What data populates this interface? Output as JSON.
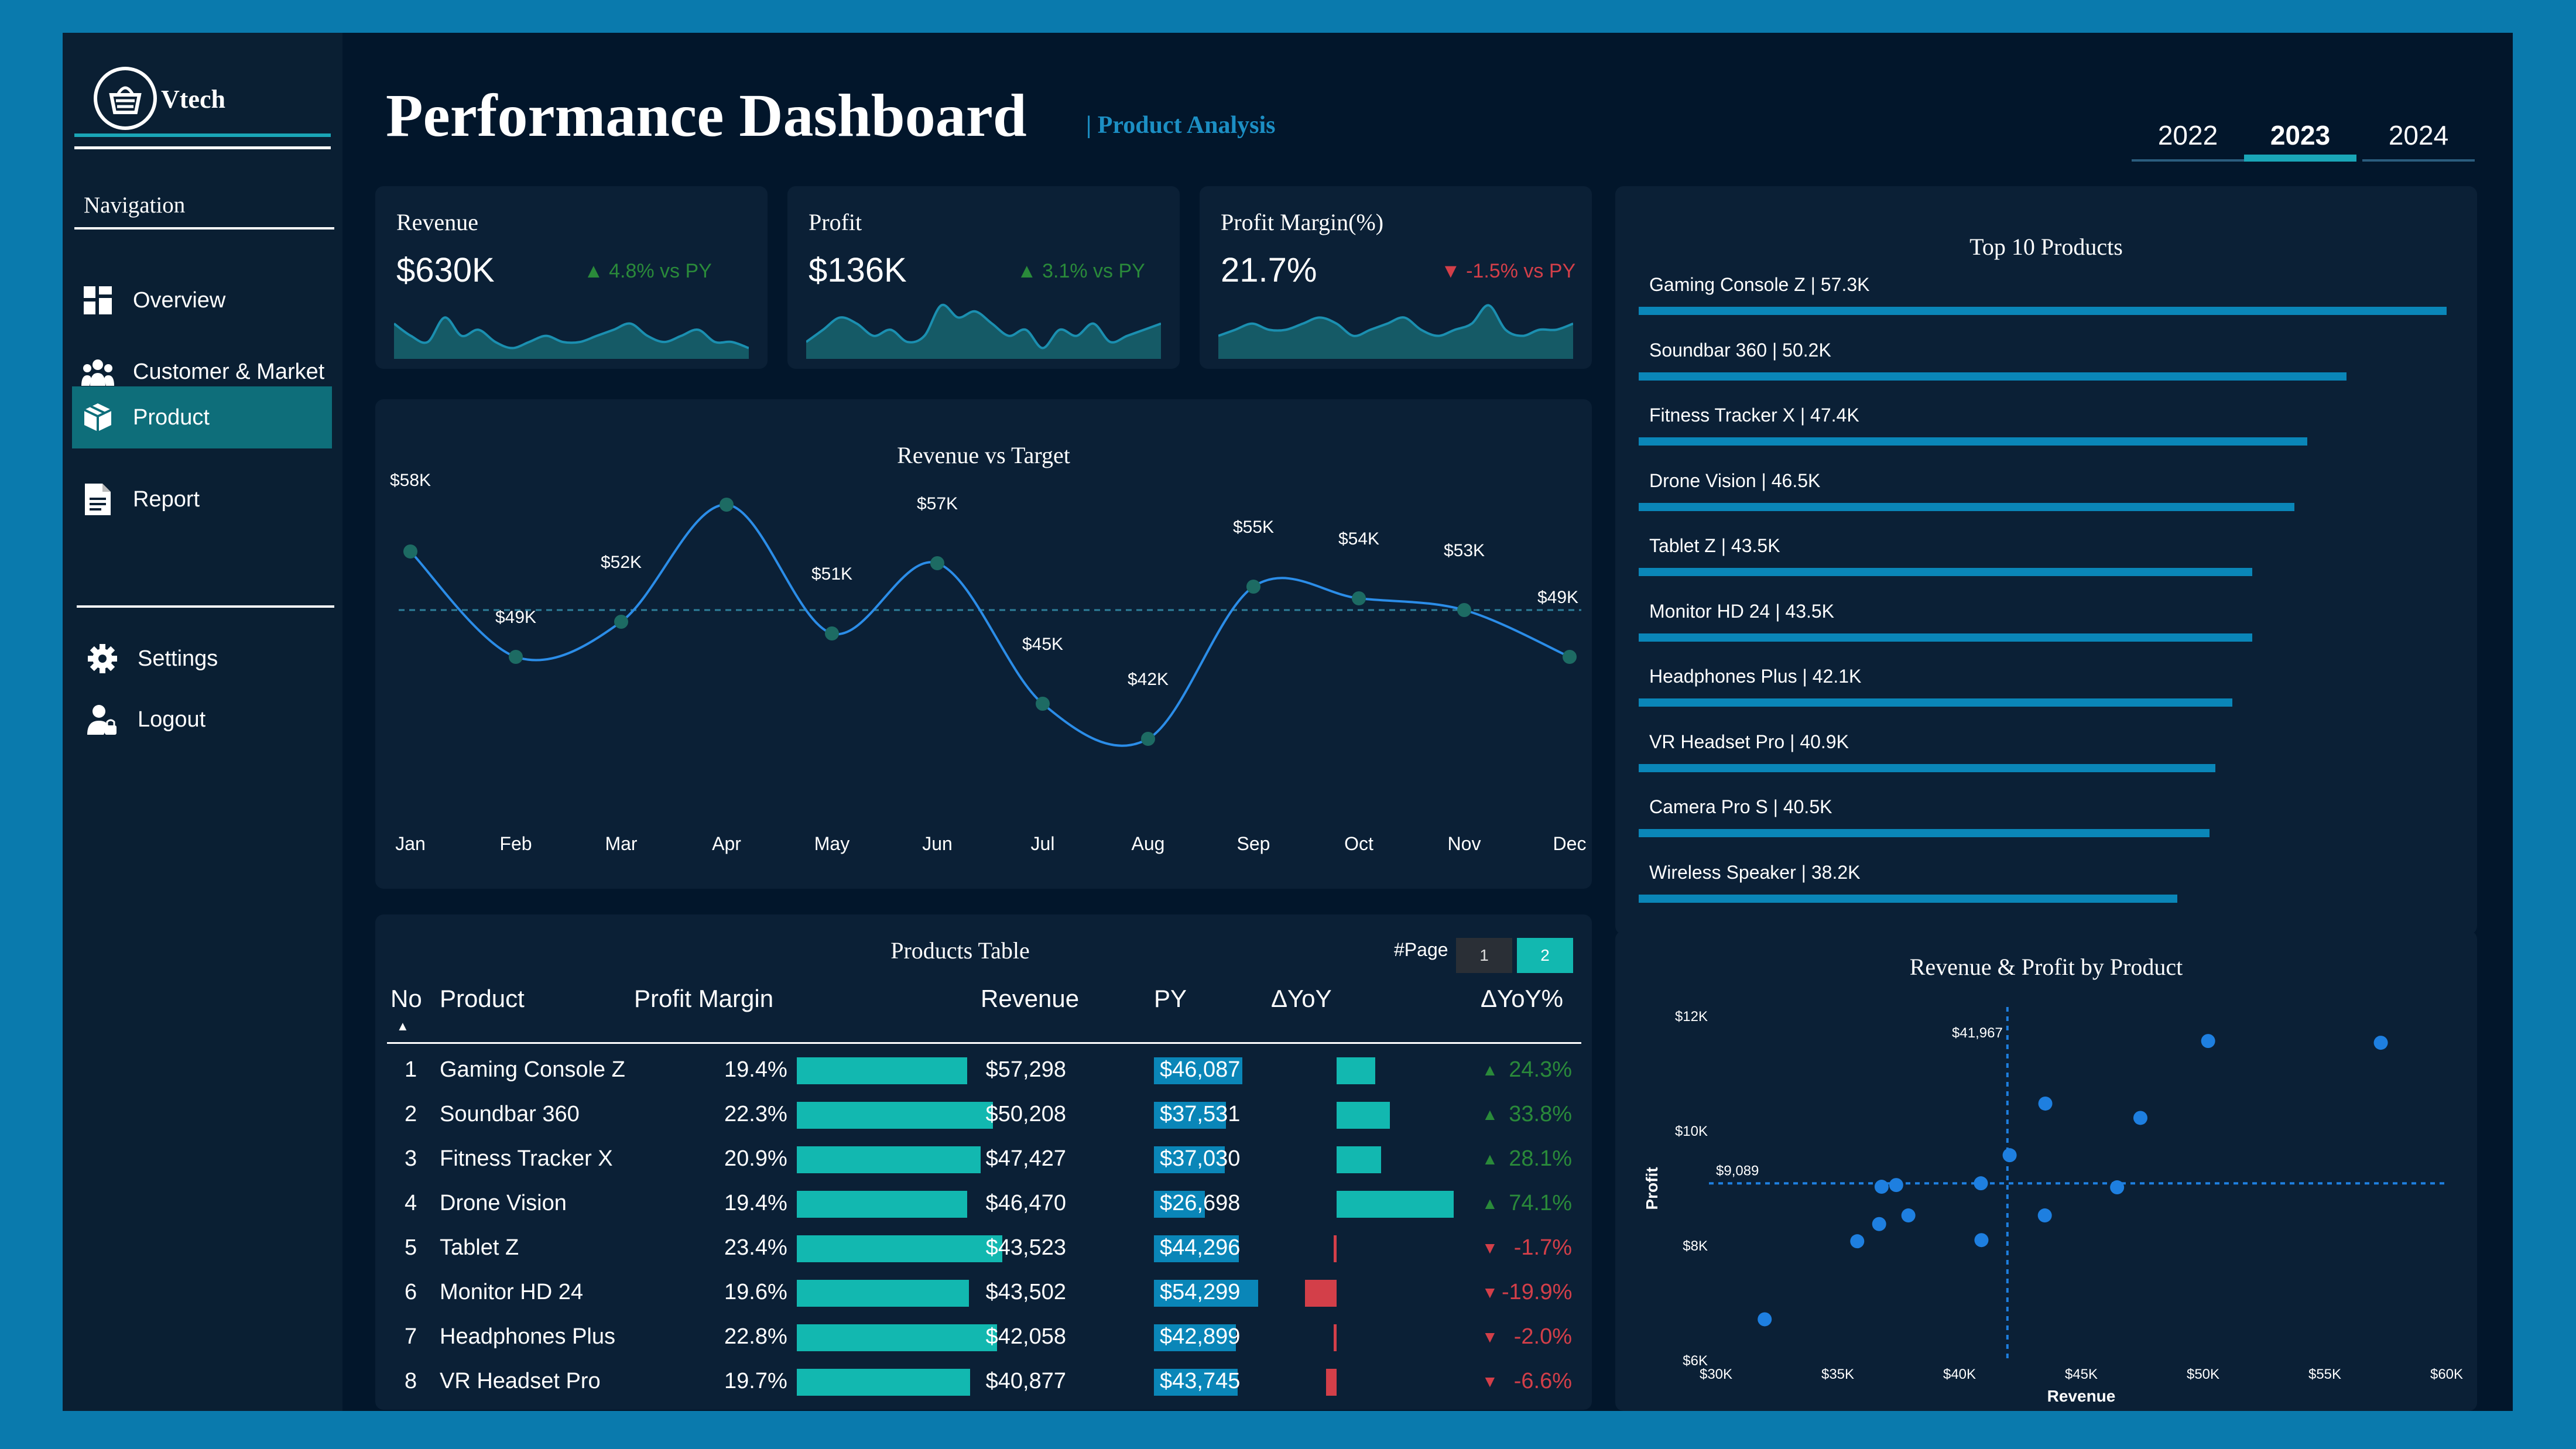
{
  "brand": {
    "name": "Vtech"
  },
  "navigation": {
    "heading": "Navigation",
    "items": [
      {
        "label": "Overview",
        "icon": "overview-grid-icon"
      },
      {
        "label": "Customer & Market",
        "icon": "customers-icon"
      },
      {
        "label": "Product",
        "icon": "product-box-icon",
        "active": true
      },
      {
        "label": "Report",
        "icon": "report-document-icon"
      }
    ],
    "bottom_items": [
      {
        "label": "Settings",
        "icon": "gear-icon"
      },
      {
        "label": "Logout",
        "icon": "logout-user-icon"
      }
    ]
  },
  "header": {
    "title": "Performance Dashboard",
    "subtitle": "| Product Analysis",
    "years": [
      "2022",
      "2023",
      "2024"
    ],
    "selected_year": "2023"
  },
  "kpis": [
    {
      "label": "Revenue",
      "value": "$630K",
      "delta": "4.8% vs PY",
      "direction": "up"
    },
    {
      "label": "Profit",
      "value": "$136K",
      "delta": "3.1% vs PY",
      "direction": "up"
    },
    {
      "label": "Profit Margin(%)",
      "value": "21.7%",
      "delta": "-1.5% vs PY",
      "direction": "down"
    }
  ],
  "colors": {
    "accent": "#1aa6b7",
    "bar": "#0a86b8",
    "positive": "#2a8a3a",
    "negative": "#d33f49",
    "line": "#2b8de8",
    "point": "#1d6b63",
    "scatter": "#1e7fe0"
  },
  "chart_data": [
    {
      "type": "line",
      "title": "Revenue vs Target",
      "categories": [
        "Jan",
        "Feb",
        "Mar",
        "Apr",
        "May",
        "Jun",
        "Jul",
        "Aug",
        "Sep",
        "Oct",
        "Nov",
        "Dec"
      ],
      "series": [
        {
          "name": "",
          "values": [
            58,
            49,
            52,
            62,
            51,
            57,
            45,
            42,
            55,
            54,
            53,
            49
          ]
        }
      ],
      "data_labels": [
        "$58K",
        "$49K",
        "$52K",
        "",
        "$51K",
        "$57K",
        "$45K",
        "$42K",
        "$55K",
        "$54K",
        "$53K",
        "$49K"
      ],
      "target": 53,
      "ylim": [
        39,
        66
      ]
    },
    {
      "type": "bar",
      "title": "Top 10 Products",
      "labels": [
        "Gaming Console Z | 57.3K",
        "Soundbar 360 | 50.2K",
        "Fitness Tracker X | 47.4K",
        "Drone Vision | 46.5K",
        "Tablet Z | 43.5K",
        "Monitor HD 24 | 43.5K",
        "Headphones Plus | 42.1K",
        "VR Headset Pro | 40.9K",
        "Camera Pro S | 40.5K",
        "Wireless Speaker | 38.2K"
      ],
      "values": [
        57.3,
        50.2,
        47.4,
        46.5,
        43.5,
        43.5,
        42.1,
        40.9,
        40.5,
        38.2
      ]
    },
    {
      "type": "scatter",
      "title": "Revenue & Profit by Product",
      "xlabel": "Revenue",
      "ylabel": "Profit",
      "xlim": [
        30000,
        60000
      ],
      "ylim": [
        6000,
        12000
      ],
      "x_ticks": [
        "$30K",
        "$35K",
        "$40K",
        "$45K",
        "$50K",
        "$55K",
        "$60K"
      ],
      "y_ticks": [
        "$6K",
        "$8K",
        "$10K",
        "$12K"
      ],
      "ref_x_label": "$41,967",
      "ref_y_label": "$9,089",
      "ref_x": 41967,
      "ref_y": 9089,
      "points": [
        {
          "x": 57298,
          "y": 11540
        },
        {
          "x": 50208,
          "y": 11570
        },
        {
          "x": 47427,
          "y": 10230
        },
        {
          "x": 43523,
          "y": 10480
        },
        {
          "x": 42058,
          "y": 9580
        },
        {
          "x": 40877,
          "y": 9090
        },
        {
          "x": 37400,
          "y": 9060
        },
        {
          "x": 36800,
          "y": 9030
        },
        {
          "x": 46470,
          "y": 9020
        },
        {
          "x": 43502,
          "y": 8530
        },
        {
          "x": 37900,
          "y": 8530
        },
        {
          "x": 36700,
          "y": 8380
        },
        {
          "x": 35800,
          "y": 8080
        },
        {
          "x": 40900,
          "y": 8100
        },
        {
          "x": 32000,
          "y": 6720
        }
      ]
    },
    {
      "type": "area",
      "title": "",
      "series": [
        {
          "name": "",
          "values": [
            5,
            3,
            2,
            6,
            3,
            4,
            2,
            1,
            2,
            3,
            2,
            2,
            3,
            4,
            5,
            3,
            2,
            3,
            4,
            2,
            2,
            1
          ]
        }
      ]
    },
    {
      "type": "area",
      "title": "",
      "series": [
        {
          "name": "",
          "values": [
            2,
            4,
            6,
            5,
            3,
            4,
            2,
            3,
            8,
            6,
            7,
            5,
            3,
            4,
            1,
            4,
            3,
            5,
            2,
            3,
            4,
            5
          ]
        }
      ]
    },
    {
      "type": "area",
      "title": "",
      "series": [
        {
          "name": "",
          "values": [
            3,
            4,
            5,
            4,
            4,
            5,
            6,
            5,
            3,
            4,
            5,
            6,
            4,
            3,
            4,
            5,
            8,
            4,
            3,
            4,
            4,
            5
          ]
        }
      ]
    }
  ],
  "revenue_chart_title": "Revenue vs Target",
  "top_products_title": "Top 10 Products",
  "scatter_title": "Revenue & Profit by Product",
  "table": {
    "title": "Products Table",
    "page_label": "#Page",
    "pages": [
      "1",
      "2"
    ],
    "current_page": "2",
    "columns": [
      "No",
      "Product",
      "Profit Margin",
      "Revenue",
      "PY",
      "ΔYoY",
      "ΔYoY%"
    ],
    "rows": [
      {
        "no": "1",
        "product": "Gaming Console Z",
        "margin": "19.4%",
        "margin_val": 19.4,
        "revenue": "$57,298",
        "py": "$46,087",
        "py_val": 46087,
        "yoy_pct": "24.3%",
        "yoy_val": 24.3,
        "dir": "up"
      },
      {
        "no": "2",
        "product": "Soundbar 360",
        "margin": "22.3%",
        "margin_val": 22.3,
        "revenue": "$50,208",
        "py": "$37,531",
        "py_val": 37531,
        "yoy_pct": "33.8%",
        "yoy_val": 33.8,
        "dir": "up"
      },
      {
        "no": "3",
        "product": "Fitness Tracker X",
        "margin": "20.9%",
        "margin_val": 20.9,
        "revenue": "$47,427",
        "py": "$37,030",
        "py_val": 37030,
        "yoy_pct": "28.1%",
        "yoy_val": 28.1,
        "dir": "up"
      },
      {
        "no": "4",
        "product": "Drone Vision",
        "margin": "19.4%",
        "margin_val": 19.4,
        "revenue": "$46,470",
        "py": "$26,698",
        "py_val": 26698,
        "yoy_pct": "74.1%",
        "yoy_val": 74.1,
        "dir": "up"
      },
      {
        "no": "5",
        "product": "Tablet Z",
        "margin": "23.4%",
        "margin_val": 23.4,
        "revenue": "$43,523",
        "py": "$44,296",
        "py_val": 44296,
        "yoy_pct": "-1.7%",
        "yoy_val": -1.7,
        "dir": "down"
      },
      {
        "no": "6",
        "product": "Monitor HD 24",
        "margin": "19.6%",
        "margin_val": 19.6,
        "revenue": "$43,502",
        "py": "$54,299",
        "py_val": 54299,
        "yoy_pct": "-19.9%",
        "yoy_val": -19.9,
        "dir": "down"
      },
      {
        "no": "7",
        "product": "Headphones Plus",
        "margin": "22.8%",
        "margin_val": 22.8,
        "revenue": "$42,058",
        "py": "$42,899",
        "py_val": 42899,
        "yoy_pct": "-2.0%",
        "yoy_val": -2.0,
        "dir": "down"
      },
      {
        "no": "8",
        "product": "VR Headset Pro",
        "margin": "19.7%",
        "margin_val": 19.7,
        "revenue": "$40,877",
        "py": "$43,745",
        "py_val": 43745,
        "yoy_pct": "-6.6%",
        "yoy_val": -6.6,
        "dir": "down"
      }
    ]
  }
}
